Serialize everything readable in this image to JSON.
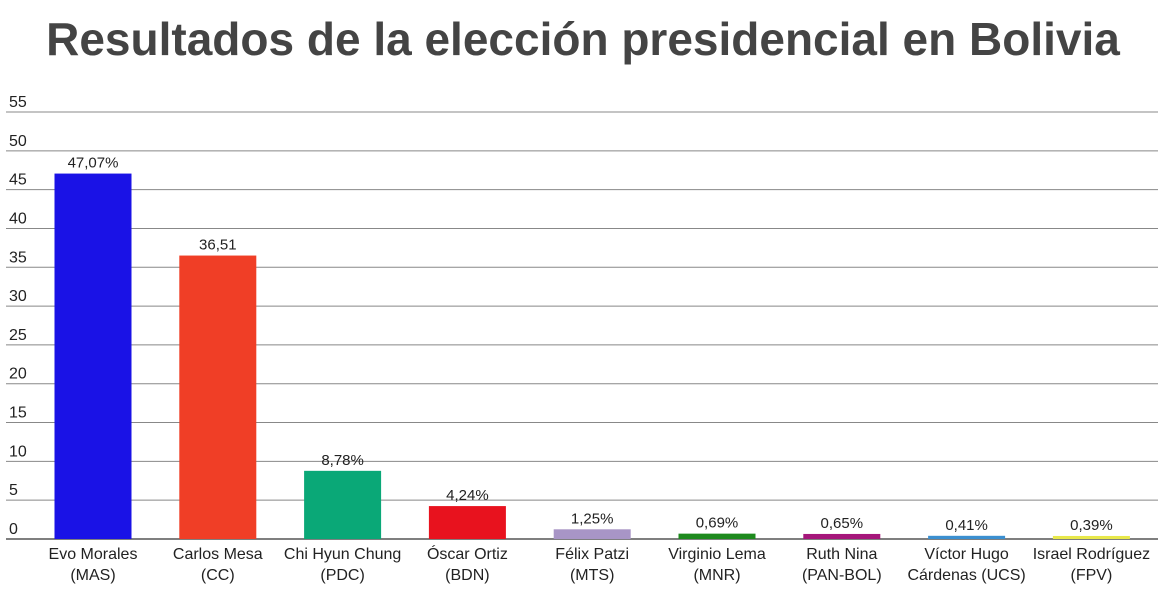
{
  "chart_data": {
    "type": "bar",
    "title": "Resultados de la elección presidencial en Bolivia",
    "ylim": [
      0,
      55
    ],
    "yticks": [
      0,
      5,
      10,
      15,
      20,
      25,
      30,
      35,
      40,
      45,
      50,
      55
    ],
    "grid": true,
    "categories": [
      [
        "Evo Morales",
        "(MAS)"
      ],
      [
        "Carlos Mesa",
        "(CC)"
      ],
      [
        "Chi Hyun Chung",
        "(PDC)"
      ],
      [
        "Óscar Ortiz",
        "(BDN)"
      ],
      [
        "Félix Patzi",
        "(MTS)"
      ],
      [
        "Virginio Lema",
        "(MNR)"
      ],
      [
        "Ruth Nina",
        "(PAN-BOL)"
      ],
      [
        "Víctor Hugo",
        "Cárdenas (UCS)"
      ],
      [
        "Israel Rodríguez",
        "(FPV)"
      ]
    ],
    "values": [
      47.07,
      36.51,
      8.78,
      4.24,
      1.25,
      0.69,
      0.65,
      0.41,
      0.39
    ],
    "value_labels": [
      "47,07%",
      "36,51",
      "8,78%",
      "4,24%",
      "1,25%",
      "0,69%",
      "0,65%",
      "0,41%",
      "0,39%"
    ],
    "colors": [
      "#1a12e6",
      "#f03e26",
      "#0aa877",
      "#e8121e",
      "#a895c6",
      "#1e8a1e",
      "#a5167a",
      "#3b8fd0",
      "#e8e84a"
    ]
  }
}
